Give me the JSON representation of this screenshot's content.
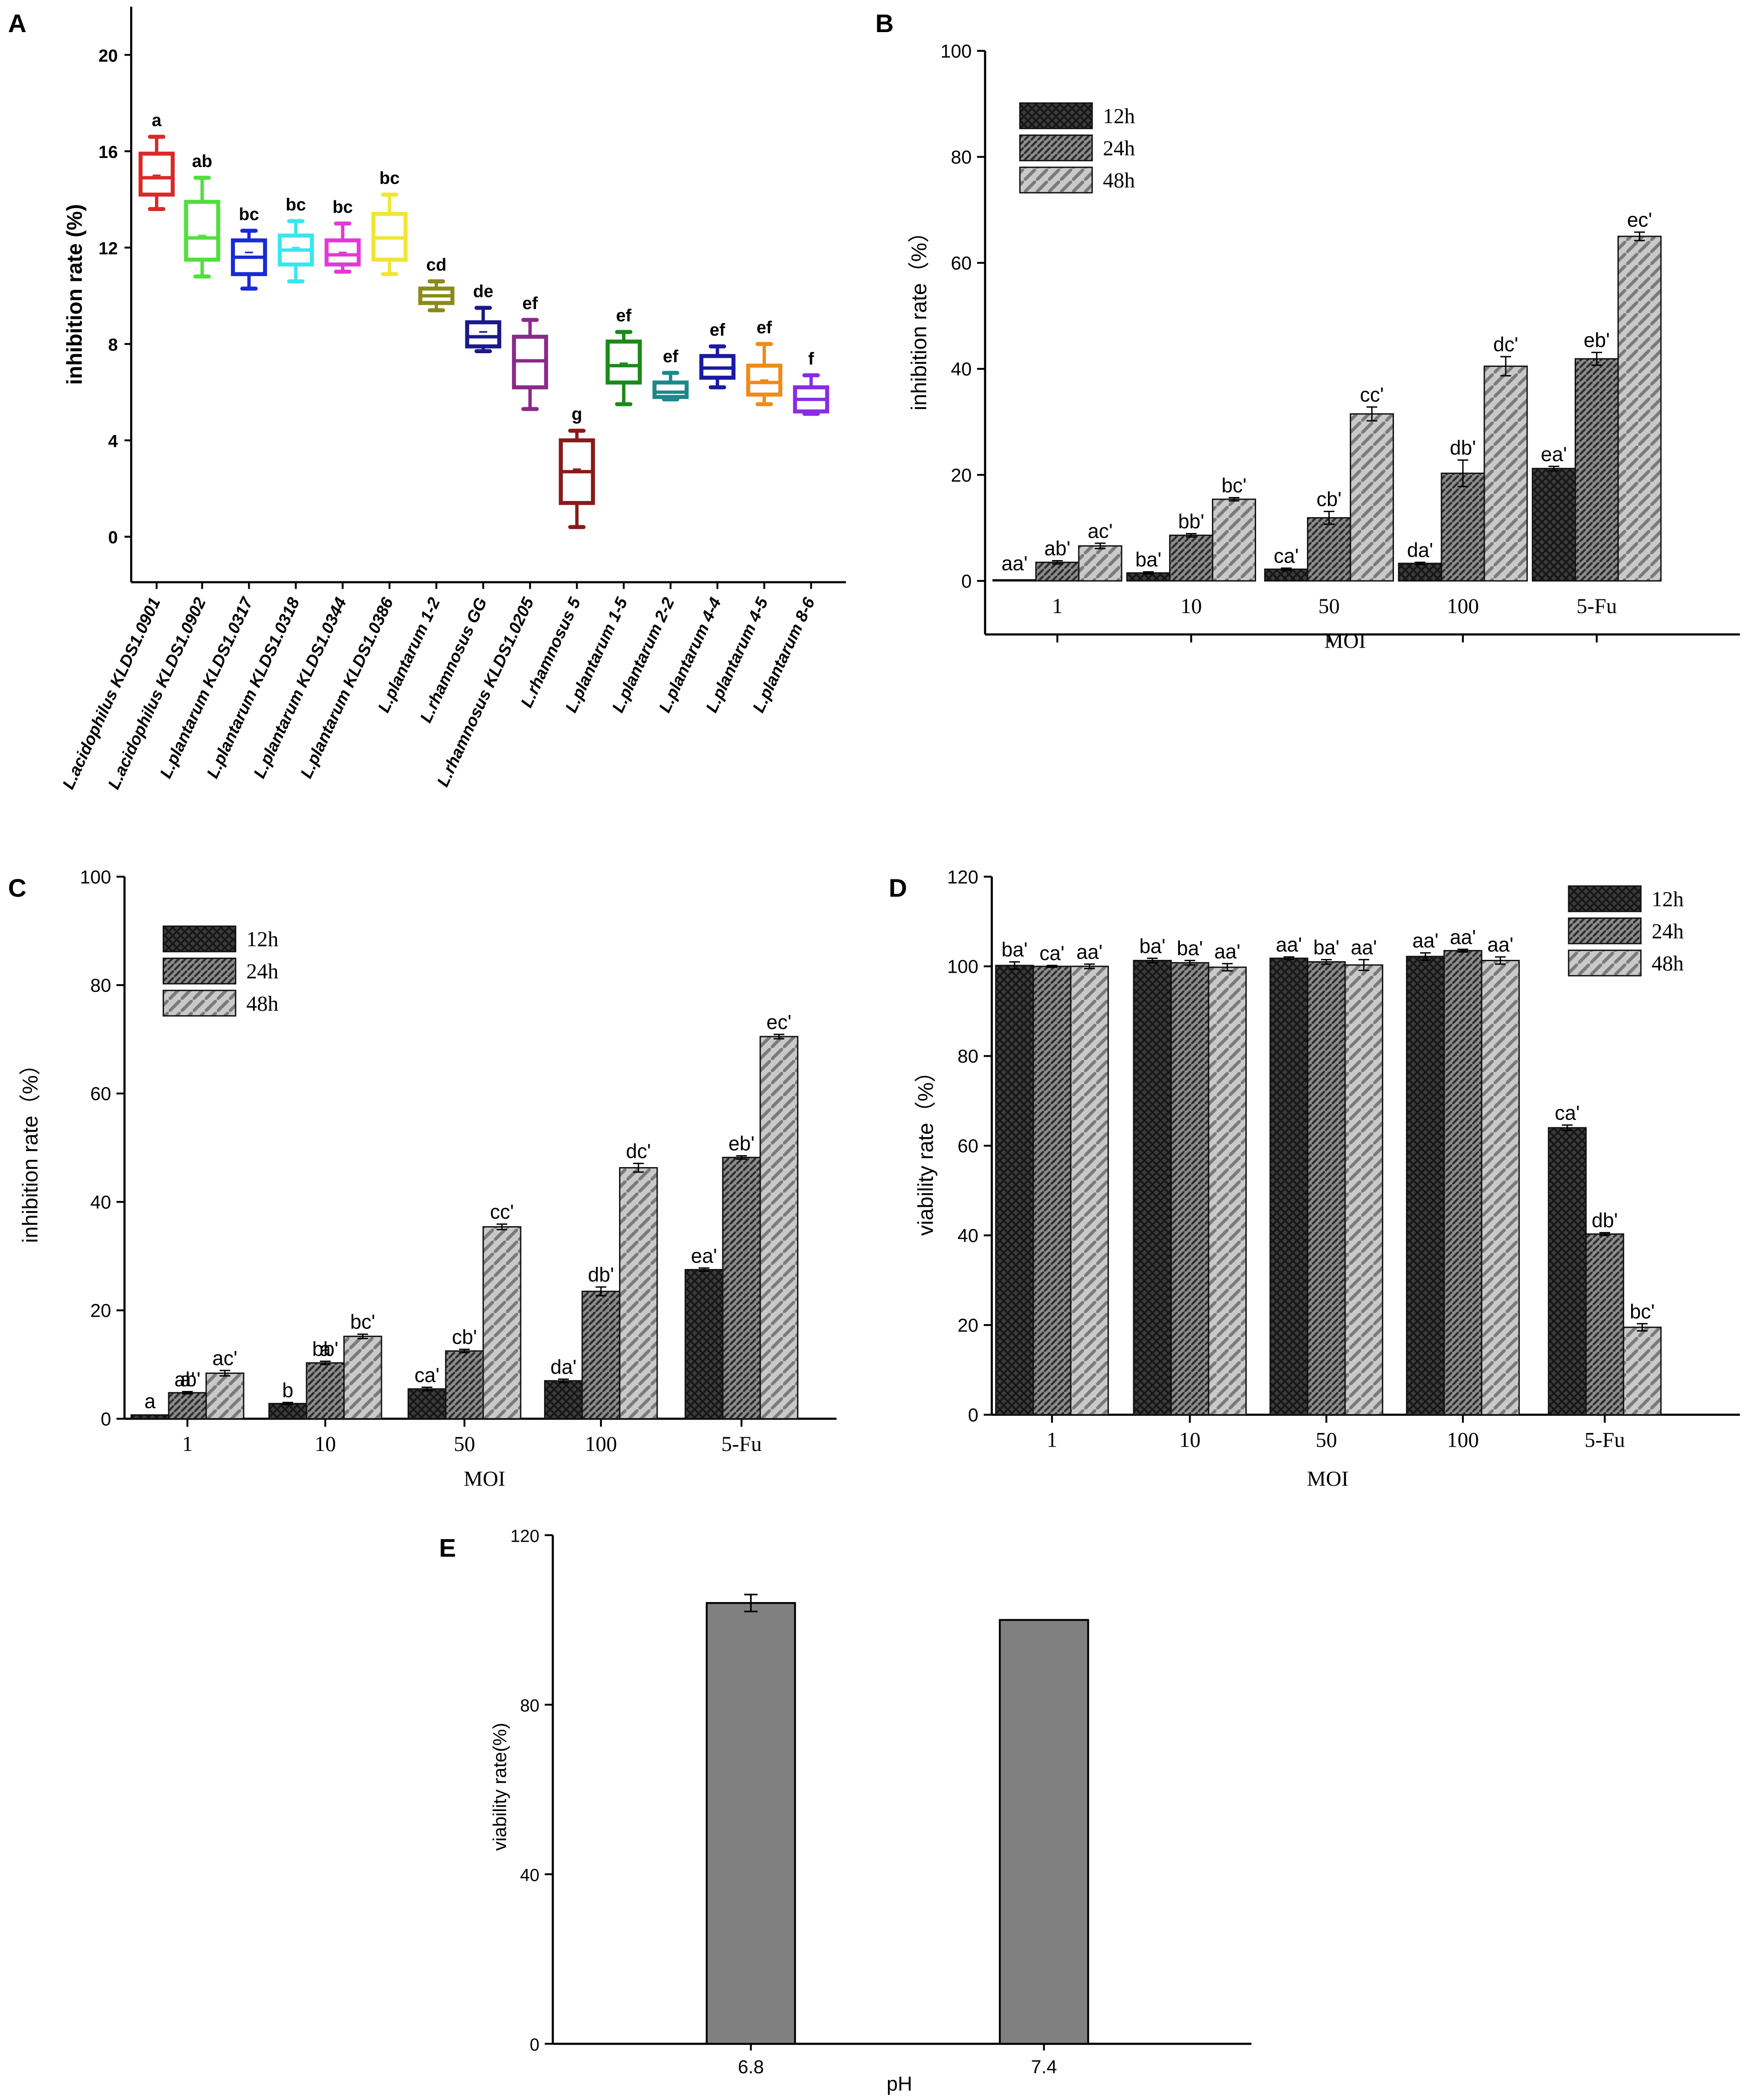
{
  "chart_data": [
    {
      "panel": "A",
      "type": "box",
      "ylabel": "inhibition rate (%)",
      "ylim": [
        -2,
        22
      ],
      "yticks": [
        0,
        4,
        8,
        12,
        16,
        20
      ],
      "categories": [
        "L.acidophilus KLDS1.0901",
        "L.acidophilus KLDS1.0902",
        "L.plantarum KLDS1.0317",
        "L.plantarum KLDS1.0318",
        "L.plantarum KLDS1.0344",
        "L.plantarum KLDS1.0386",
        "L.plantarum 1-2",
        "L.rhamnosus GG",
        "L.rhamnosus KLDS1.0205",
        "L.rhamnosus 5",
        "L.plantarum 1-5",
        "L.plantarum 2-2",
        "L.plantarum 4-4",
        "L.plantarum 4-5",
        "L.plantarum 8-6"
      ],
      "boxes": [
        {
          "min": 13.6,
          "q1": 14.2,
          "median": 14.9,
          "mean": 15.0,
          "q3": 15.9,
          "max": 16.6,
          "letter": "a",
          "color": "#d92a2a"
        },
        {
          "min": 10.8,
          "q1": 11.5,
          "median": 12.4,
          "mean": 12.5,
          "q3": 13.9,
          "max": 14.9,
          "letter": "ab",
          "color": "#4fe03a"
        },
        {
          "min": 10.3,
          "q1": 10.9,
          "median": 11.6,
          "mean": 11.8,
          "q3": 12.3,
          "max": 12.7,
          "letter": "bc",
          "color": "#1a2ad6"
        },
        {
          "min": 10.6,
          "q1": 11.3,
          "median": 11.9,
          "mean": 12.0,
          "q3": 12.5,
          "max": 13.1,
          "letter": "bc",
          "color": "#38e6ee"
        },
        {
          "min": 11.0,
          "q1": 11.3,
          "median": 11.7,
          "mean": 11.8,
          "q3": 12.3,
          "max": 13.0,
          "letter": "bc",
          "color": "#e23ad6"
        },
        {
          "min": 10.9,
          "q1": 11.5,
          "median": 12.4,
          "mean": 12.4,
          "q3": 13.4,
          "max": 14.2,
          "letter": "bc",
          "color": "#f0e632"
        },
        {
          "min": 9.4,
          "q1": 9.7,
          "median": 10.0,
          "mean": 10.0,
          "q3": 10.3,
          "max": 10.6,
          "letter": "cd",
          "color": "#8a8a1a"
        },
        {
          "min": 7.7,
          "q1": 7.9,
          "median": 8.3,
          "mean": 8.5,
          "q3": 8.9,
          "max": 9.5,
          "letter": "de",
          "color": "#1a1a8a"
        },
        {
          "min": 5.3,
          "q1": 6.2,
          "median": 7.3,
          "mean": 7.3,
          "q3": 8.3,
          "max": 9.0,
          "letter": "ef",
          "color": "#8a2a8a"
        },
        {
          "min": 0.4,
          "q1": 1.4,
          "median": 2.7,
          "mean": 2.8,
          "q3": 4.0,
          "max": 4.4,
          "letter": "g",
          "color": "#8a1a1a"
        },
        {
          "min": 5.5,
          "q1": 6.4,
          "median": 7.1,
          "mean": 7.2,
          "q3": 8.1,
          "max": 8.5,
          "letter": "ef",
          "color": "#1a8a1a"
        },
        {
          "min": 5.7,
          "q1": 5.8,
          "median": 6.0,
          "mean": 6.0,
          "q3": 6.4,
          "max": 6.8,
          "letter": "ef",
          "color": "#1a8a8a"
        },
        {
          "min": 6.2,
          "q1": 6.6,
          "median": 7.0,
          "mean": 7.0,
          "q3": 7.5,
          "max": 7.9,
          "letter": "ef",
          "color": "#1a1aa0"
        },
        {
          "min": 5.5,
          "q1": 5.9,
          "median": 6.4,
          "mean": 6.5,
          "q3": 7.1,
          "max": 8.0,
          "letter": "ef",
          "color": "#f08a1a"
        },
        {
          "min": 5.1,
          "q1": 5.2,
          "median": 5.7,
          "mean": 5.7,
          "q3": 6.2,
          "max": 6.7,
          "letter": "f",
          "color": "#8a2ae6"
        }
      ]
    },
    {
      "panel": "B",
      "type": "bar",
      "xlabel": "MOI",
      "ylabel": "inhibition rate（%）",
      "ylim": [
        0,
        100
      ],
      "yticks": [
        0,
        20,
        40,
        60,
        80,
        100
      ],
      "categories": [
        "1",
        "10",
        "50",
        "100",
        "5-Fu"
      ],
      "series": [
        {
          "name": "12h",
          "values": [
            0.2,
            1.5,
            2.2,
            3.3,
            21.2
          ],
          "errors": [
            0,
            0.2,
            0.2,
            0.2,
            0.4
          ],
          "labels": [
            "aa'",
            "ba'",
            "ca'",
            "da'",
            "ea'"
          ]
        },
        {
          "name": "24h",
          "values": [
            3.5,
            8.6,
            11.9,
            20.3,
            41.9
          ],
          "errors": [
            0.3,
            0.3,
            1.2,
            2.5,
            1.2
          ],
          "labels": [
            "ab'",
            "bb'",
            "cb'",
            "db'",
            "eb'"
          ]
        },
        {
          "name": "48h",
          "values": [
            6.6,
            15.4,
            31.5,
            40.5,
            65.0
          ],
          "errors": [
            0.5,
            0.3,
            1.3,
            1.8,
            0.8
          ],
          "labels": [
            "ac'",
            "bc'",
            "cc'",
            "dc'",
            "ec'"
          ]
        }
      ]
    },
    {
      "panel": "C",
      "type": "bar",
      "xlabel": "MOI",
      "ylabel": "inhibition rate（%）",
      "ylim": [
        0,
        100
      ],
      "yticks": [
        0,
        20,
        40,
        60,
        80,
        100
      ],
      "categories": [
        "1",
        "10",
        "50",
        "100",
        "5-Fu"
      ],
      "series": [
        {
          "name": "12h",
          "values": [
            0.7,
            2.8,
            5.5,
            7.0,
            27.5
          ],
          "errors": [
            0,
            0.2,
            0.3,
            0.3,
            0.3
          ],
          "labels": [
            "a",
            "b",
            "ca'",
            "da'",
            "ea'"
          ]
        },
        {
          "name": "24h",
          "values": [
            4.8,
            10.3,
            12.5,
            23.5,
            48.2
          ],
          "errors": [
            0.2,
            0.3,
            0.3,
            0.8,
            0.3
          ],
          "labels": [
            "a'",
            "a",
            "cb'",
            "db'",
            "eb'"
          ]
        },
        {
          "name": "48h",
          "values": [
            8.4,
            15.2,
            35.4,
            46.3,
            70.5
          ],
          "errors": [
            0.5,
            0.4,
            0.5,
            0.8,
            0.4
          ],
          "labels": [
            "ac'",
            "bc'",
            "cc'",
            "dc'",
            "ec'"
          ]
        }
      ],
      "extra_labels": [
        {
          "text": "ab'",
          "category_index": 0,
          "series_index": 1
        },
        {
          "text": "bb'",
          "category_index": 1,
          "series_index": 1
        }
      ]
    },
    {
      "panel": "D",
      "type": "bar",
      "xlabel": "MOI",
      "ylabel": "viability rate（%）",
      "ylim": [
        0,
        120
      ],
      "yticks": [
        0,
        20,
        40,
        60,
        80,
        100,
        120
      ],
      "categories": [
        "1",
        "10",
        "50",
        "100",
        "5-Fu"
      ],
      "series": [
        {
          "name": "12h",
          "values": [
            100.2,
            101.3,
            101.8,
            102.2,
            64.0
          ],
          "errors": [
            0.8,
            0.5,
            0.3,
            0.8,
            0.6
          ],
          "labels": [
            "ba'",
            "ba'",
            "aa'",
            "aa'",
            "ca'"
          ]
        },
        {
          "name": "24h",
          "values": [
            100.0,
            100.8,
            101.0,
            103.5,
            40.3
          ],
          "errors": [
            0.2,
            0.5,
            0.5,
            0.3,
            0.3
          ],
          "labels": [
            "ca'",
            "ba'",
            "ba'",
            "aa'",
            "db'"
          ]
        },
        {
          "name": "48h",
          "values": [
            100.0,
            99.8,
            100.3,
            101.3,
            19.5
          ],
          "errors": [
            0.5,
            0.8,
            1.2,
            0.8,
            0.8
          ],
          "labels": [
            "aa'",
            "aa'",
            "aa'",
            "aa'",
            "bc'"
          ]
        }
      ]
    },
    {
      "panel": "E",
      "type": "bar",
      "xlabel": "pH",
      "ylabel": "viability rate(%)",
      "ylim": [
        0,
        120
      ],
      "yticks": [
        0,
        40,
        80,
        120
      ],
      "categories": [
        "6.8",
        "7.4"
      ],
      "series": [
        {
          "name": "viability",
          "values": [
            104.0,
            100.0
          ],
          "errors": [
            2.0,
            0
          ]
        }
      ]
    }
  ]
}
